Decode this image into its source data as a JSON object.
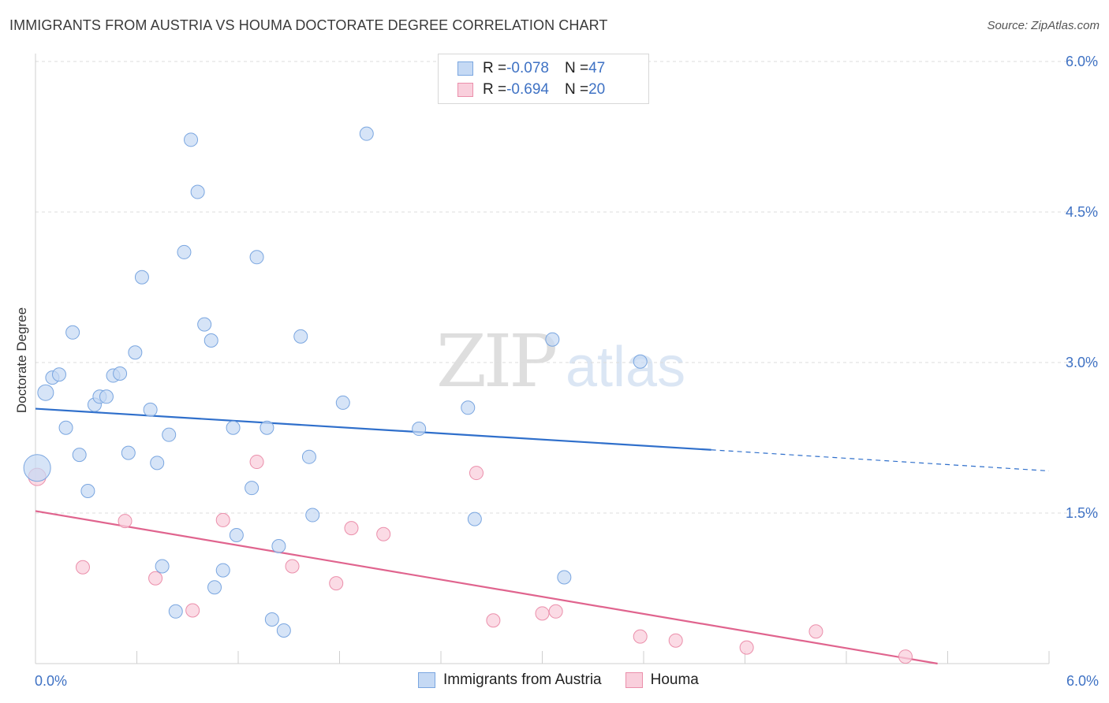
{
  "title": "IMMIGRANTS FROM AUSTRIA VS HOUMA DOCTORATE DEGREE CORRELATION CHART",
  "source": "Source: ZipAtlas.com",
  "watermark": {
    "zip": "ZIP",
    "atlas": "atlas"
  },
  "colors": {
    "austria": "#7aa6e0",
    "austria_fill": "#c5d9f4",
    "austria_line": "#2f6fcb",
    "houma": "#eb8fab",
    "houma_fill": "#f9cfdc",
    "houma_line": "#e0648e",
    "axis_text": "#3f72c4"
  },
  "legend": {
    "rows": [
      {
        "r_label": "R = ",
        "r_value": "-0.078",
        "n_label": "N = ",
        "n_value": "47"
      },
      {
        "r_label": "R = ",
        "r_value": "-0.694",
        "n_label": "N = ",
        "n_value": "20"
      }
    ]
  },
  "bottom_legend": {
    "austria": "Immigrants from Austria",
    "houma": "Houma"
  },
  "chart_data": {
    "type": "scatter",
    "title": "IMMIGRANTS FROM AUSTRIA VS HOUMA DOCTORATE DEGREE CORRELATION CHART",
    "xlabel": "",
    "ylabel": "Doctorate Degree",
    "xlim": [
      0,
      6
    ],
    "ylim": [
      0,
      6
    ],
    "x_tick_labels": [
      "0.0%",
      "6.0%"
    ],
    "y_ticks": [
      1.5,
      3.0,
      4.5,
      6.0
    ],
    "y_tick_labels": [
      "1.5%",
      "3.0%",
      "4.5%",
      "6.0%"
    ],
    "grid": true,
    "legend_position": "top-center",
    "series": [
      {
        "name": "Immigrants from Austria",
        "r": -0.078,
        "n": 47,
        "trend": {
          "x0": 0,
          "y0": 2.54,
          "x1": 4.0,
          "y1": 2.13,
          "dash_to_x": 6.0,
          "dash_to_y": 1.92
        },
        "points": [
          [
            0.01,
            1.95
          ],
          [
            0.06,
            2.7
          ],
          [
            0.1,
            2.85
          ],
          [
            0.14,
            2.88
          ],
          [
            0.18,
            2.35
          ],
          [
            0.22,
            3.3
          ],
          [
            0.26,
            2.08
          ],
          [
            0.31,
            1.72
          ],
          [
            0.35,
            2.58
          ],
          [
            0.38,
            2.66
          ],
          [
            0.42,
            2.66
          ],
          [
            0.46,
            2.87
          ],
          [
            0.5,
            2.89
          ],
          [
            0.55,
            2.1
          ],
          [
            0.59,
            3.1
          ],
          [
            0.63,
            3.85
          ],
          [
            0.68,
            2.53
          ],
          [
            0.72,
            2.0
          ],
          [
            0.75,
            0.97
          ],
          [
            0.79,
            2.28
          ],
          [
            0.83,
            0.52
          ],
          [
            0.88,
            4.1
          ],
          [
            0.92,
            5.22
          ],
          [
            0.96,
            4.7
          ],
          [
            1.0,
            3.38
          ],
          [
            1.04,
            3.22
          ],
          [
            1.06,
            0.76
          ],
          [
            1.11,
            0.93
          ],
          [
            1.17,
            2.35
          ],
          [
            1.19,
            1.28
          ],
          [
            1.28,
            1.75
          ],
          [
            1.31,
            4.05
          ],
          [
            1.37,
            2.35
          ],
          [
            1.4,
            0.44
          ],
          [
            1.44,
            1.17
          ],
          [
            1.47,
            0.33
          ],
          [
            1.57,
            3.26
          ],
          [
            1.62,
            2.06
          ],
          [
            1.64,
            1.48
          ],
          [
            1.82,
            2.6
          ],
          [
            1.96,
            5.28
          ],
          [
            2.27,
            2.34
          ],
          [
            2.56,
            2.55
          ],
          [
            2.6,
            1.44
          ],
          [
            3.06,
            3.23
          ],
          [
            3.13,
            0.86
          ],
          [
            3.58,
            3.01
          ]
        ]
      },
      {
        "name": "Houma",
        "r": -0.694,
        "n": 20,
        "trend": {
          "x0": 0,
          "y0": 1.52,
          "x1": 5.34,
          "y1": 0.0
        },
        "points": [
          [
            0.01,
            1.86
          ],
          [
            0.28,
            0.96
          ],
          [
            0.53,
            1.42
          ],
          [
            0.71,
            0.85
          ],
          [
            0.93,
            0.53
          ],
          [
            1.11,
            1.43
          ],
          [
            1.31,
            2.01
          ],
          [
            1.52,
            0.97
          ],
          [
            1.78,
            0.8
          ],
          [
            1.87,
            1.35
          ],
          [
            2.06,
            1.29
          ],
          [
            2.61,
            1.9
          ],
          [
            2.71,
            0.43
          ],
          [
            3.0,
            0.5
          ],
          [
            3.08,
            0.52
          ],
          [
            3.58,
            0.27
          ],
          [
            3.79,
            0.23
          ],
          [
            4.21,
            0.16
          ],
          [
            4.62,
            0.32
          ],
          [
            5.15,
            0.07
          ]
        ]
      }
    ]
  }
}
